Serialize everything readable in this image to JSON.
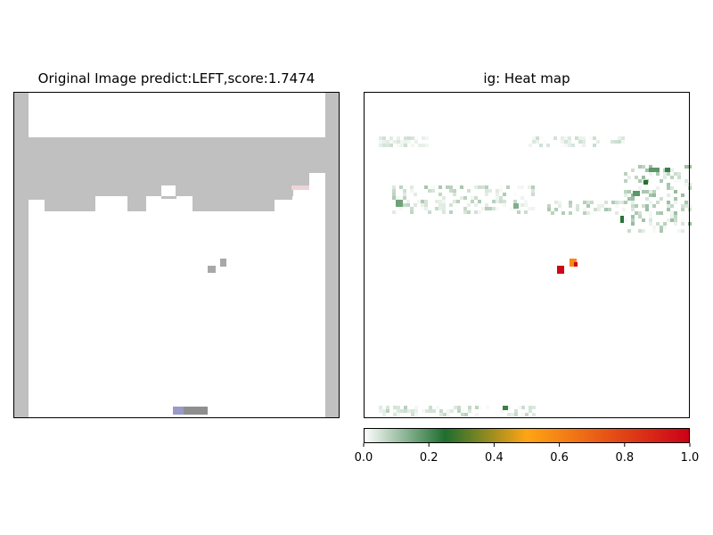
{
  "left_panel": {
    "title": "Original Image predict:LEFT,score:1.7474",
    "colors": {
      "wall": "#c0c0c0",
      "brick": "#c0c0c0",
      "ball": "#a8a8a8",
      "paddle": "#8e8e8e",
      "paddle_tint": "#9a9ac8"
    }
  },
  "right_panel": {
    "title": "ig: Heat map"
  },
  "chart_data": {
    "type": "heatmap",
    "title": "ig: Heat map",
    "colormap": [
      "#ffffff",
      "#1e6e2e",
      "#ffa514",
      "#cc0018"
    ],
    "colorbar": {
      "range": [
        0,
        1
      ],
      "ticks": [
        "0.0",
        "0.2",
        "0.4",
        "0.6",
        "0.8",
        "1.0"
      ]
    },
    "hotspots": [
      {
        "label": "ball-left",
        "value": 0.98
      },
      {
        "label": "ball-right",
        "value": 0.58
      },
      {
        "label": "ball-right-2",
        "value": 0.97
      }
    ]
  }
}
